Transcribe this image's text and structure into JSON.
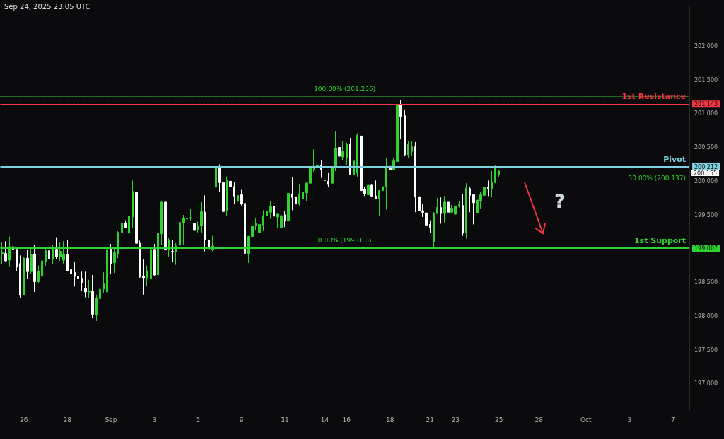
{
  "chart_data": {
    "type": "candlestick",
    "annotations": [
      "Sep 24, 2025 23:05 UTC",
      "?",
      "200.155"
    ],
    "categories": [
      null,
      null,
      null,
      null,
      null,
      null,
      "26",
      null,
      null,
      null,
      null,
      null,
      null,
      null,
      null,
      null,
      null,
      null,
      "28",
      null,
      null,
      null,
      null,
      null,
      null,
      null,
      null,
      null,
      null,
      null,
      "Sep",
      null,
      null,
      null,
      null,
      null,
      null,
      null,
      null,
      null,
      null,
      null,
      "3",
      null,
      null,
      null,
      null,
      null,
      null,
      null,
      null,
      null,
      null,
      null,
      "5",
      null,
      null,
      null,
      null,
      null,
      null,
      null,
      null,
      null,
      null,
      null,
      "9",
      null,
      null,
      null,
      null,
      null,
      null,
      null,
      null,
      null,
      null,
      null,
      "11",
      null,
      null,
      null,
      null,
      null,
      null,
      null,
      null,
      null,
      null,
      "14",
      null,
      null,
      null,
      null,
      null,
      "16",
      null,
      null,
      null,
      null,
      null,
      null,
      null,
      null,
      null,
      null,
      null,
      "18",
      null,
      null,
      null,
      null,
      null,
      null,
      null,
      null,
      null,
      null,
      "21",
      null,
      null,
      null,
      null,
      null,
      null,
      "23",
      null,
      null,
      null,
      null,
      null,
      null,
      null,
      null,
      null,
      null,
      null,
      "25",
      null,
      null,
      null,
      null,
      null,
      null,
      null,
      null,
      null,
      null,
      "28",
      null,
      null,
      null,
      null,
      null,
      null,
      null,
      null,
      null,
      null,
      null,
      null,
      "Oct",
      null,
      null,
      null,
      null,
      null,
      null,
      null,
      null,
      null,
      null,
      null,
      "3",
      null,
      null,
      null,
      null,
      null,
      null,
      null,
      null,
      null,
      null,
      null,
      "7",
      null,
      null,
      null,
      null
    ],
    "ohlc": [
      [
        198.92,
        199.09,
        198.77,
        198.94
      ],
      [
        198.93,
        199.11,
        198.81,
        198.82
      ],
      [
        198.83,
        199.18,
        198.74,
        199.03
      ],
      [
        199.03,
        199.29,
        198.93,
        198.99
      ],
      [
        198.99,
        199.02,
        198.67,
        198.73
      ],
      [
        198.78,
        198.9,
        198.27,
        198.31
      ],
      [
        198.32,
        198.88,
        198.31,
        198.86
      ],
      [
        198.86,
        198.98,
        198.55,
        198.66
      ],
      [
        198.66,
        199.01,
        198.63,
        198.91
      ],
      [
        198.92,
        199.05,
        198.36,
        198.51
      ],
      [
        198.51,
        198.75,
        198.49,
        198.67
      ],
      [
        198.59,
        198.88,
        198.44,
        198.82
      ],
      [
        198.81,
        199.02,
        198.75,
        198.97
      ],
      [
        198.97,
        198.99,
        198.66,
        198.85
      ],
      [
        198.85,
        199.06,
        198.77,
        199.0
      ],
      [
        198.99,
        199.17,
        198.85,
        198.88
      ],
      [
        198.88,
        199.09,
        198.82,
        198.96
      ],
      [
        198.83,
        199.11,
        198.78,
        198.92
      ],
      [
        198.92,
        199.13,
        198.67,
        198.67
      ],
      [
        198.69,
        198.97,
        198.54,
        198.63
      ],
      [
        198.65,
        198.81,
        198.44,
        198.59
      ],
      [
        198.59,
        198.81,
        198.5,
        198.56
      ],
      [
        198.56,
        198.66,
        198.38,
        198.5
      ],
      [
        198.41,
        198.66,
        198.28,
        198.36
      ],
      [
        198.36,
        198.54,
        198.27,
        198.37
      ],
      [
        198.37,
        198.61,
        197.97,
        198.03
      ],
      [
        198.02,
        198.32,
        197.93,
        198.27
      ],
      [
        198.26,
        198.51,
        197.99,
        198.4
      ],
      [
        198.4,
        198.65,
        198.34,
        198.48
      ],
      [
        198.36,
        199.06,
        198.23,
        198.99
      ],
      [
        198.99,
        199.07,
        198.62,
        198.78
      ],
      [
        198.79,
        199.0,
        198.64,
        198.94
      ],
      [
        198.93,
        199.26,
        198.86,
        199.24
      ],
      [
        199.24,
        199.56,
        199.23,
        199.38
      ],
      [
        199.38,
        199.42,
        199.3,
        199.31
      ],
      [
        199.23,
        199.5,
        199.14,
        199.48
      ],
      [
        199.47,
        200.01,
        199.31,
        199.85
      ],
      [
        199.84,
        200.26,
        198.8,
        199.08
      ],
      [
        199.08,
        199.12,
        198.57,
        198.58
      ],
      [
        198.59,
        198.84,
        198.32,
        198.57
      ],
      [
        198.57,
        198.75,
        198.45,
        198.67
      ],
      [
        198.56,
        198.99,
        198.47,
        198.99
      ],
      [
        198.99,
        199.07,
        198.6,
        198.61
      ],
      [
        198.61,
        199.26,
        198.47,
        199.23
      ],
      [
        199.22,
        199.71,
        199.05,
        199.69
      ],
      [
        199.69,
        199.72,
        198.89,
        198.98
      ],
      [
        198.98,
        199.16,
        198.88,
        199.13
      ],
      [
        198.96,
        199.13,
        198.8,
        198.95
      ],
      [
        198.95,
        199.08,
        198.76,
        199.04
      ],
      [
        199.05,
        199.49,
        198.95,
        199.39
      ],
      [
        199.38,
        199.5,
        199.05,
        199.45
      ],
      [
        199.44,
        199.83,
        199.32,
        199.45
      ],
      [
        199.45,
        199.59,
        199.42,
        199.46
      ],
      [
        199.38,
        199.56,
        199.17,
        199.27
      ],
      [
        199.28,
        199.4,
        199.24,
        199.34
      ],
      [
        199.34,
        199.69,
        199.24,
        199.55
      ],
      [
        199.54,
        199.79,
        198.96,
        199.13
      ],
      [
        199.13,
        199.33,
        198.67,
        199.0
      ],
      [
        198.99,
        199.19,
        198.96,
        199.04
      ],
      [
        199.91,
        200.34,
        199.62,
        200.22
      ],
      [
        200.21,
        200.25,
        199.84,
        199.98
      ],
      [
        199.98,
        200.01,
        199.36,
        199.55
      ],
      [
        199.56,
        200.07,
        199.49,
        200.01
      ],
      [
        200.0,
        200.15,
        199.84,
        199.92
      ],
      [
        199.92,
        199.99,
        199.66,
        199.78
      ],
      [
        199.7,
        199.83,
        199.56,
        199.79
      ],
      [
        199.8,
        199.87,
        199.64,
        199.66
      ],
      [
        199.67,
        199.78,
        198.88,
        198.93
      ],
      [
        198.93,
        199.19,
        198.79,
        199.18
      ],
      [
        199.18,
        199.42,
        198.88,
        199.34
      ],
      [
        199.34,
        199.45,
        199.27,
        199.38
      ],
      [
        199.24,
        199.41,
        199.15,
        199.36
      ],
      [
        199.35,
        199.57,
        199.26,
        199.49
      ],
      [
        199.49,
        199.66,
        199.4,
        199.55
      ],
      [
        199.54,
        199.71,
        199.44,
        199.62
      ],
      [
        199.63,
        199.8,
        199.44,
        199.48
      ],
      [
        199.47,
        199.52,
        199.3,
        199.51
      ],
      [
        199.31,
        199.52,
        199.22,
        199.49
      ],
      [
        199.5,
        199.56,
        199.32,
        199.41
      ],
      [
        199.41,
        199.86,
        199.36,
        199.82
      ],
      [
        199.81,
        200.06,
        199.57,
        199.76
      ],
      [
        199.77,
        199.92,
        199.37,
        199.66
      ],
      [
        199.66,
        199.96,
        199.64,
        199.8
      ],
      [
        199.74,
        199.94,
        199.64,
        199.84
      ],
      [
        199.83,
        199.99,
        199.71,
        199.97
      ],
      [
        199.97,
        200.24,
        199.66,
        200.19
      ],
      [
        200.17,
        200.47,
        200.13,
        200.22
      ],
      [
        200.21,
        200.36,
        200.07,
        200.24
      ],
      [
        200.24,
        200.31,
        200.05,
        200.17
      ],
      [
        200.02,
        200.33,
        199.9,
        200.01
      ],
      [
        200.0,
        200.12,
        199.91,
        199.96
      ],
      [
        199.97,
        200.44,
        199.93,
        200.2
      ],
      [
        200.2,
        200.74,
        200.15,
        200.49
      ],
      [
        200.5,
        200.52,
        200.21,
        200.37
      ],
      [
        200.36,
        200.59,
        200.31,
        200.44
      ],
      [
        200.35,
        200.57,
        200.24,
        200.55
      ],
      [
        200.55,
        200.64,
        200.09,
        200.1
      ],
      [
        200.09,
        200.41,
        200.06,
        200.3
      ],
      [
        200.12,
        200.71,
        200.06,
        200.68
      ],
      [
        200.67,
        200.67,
        199.85,
        199.86
      ],
      [
        199.88,
        199.92,
        199.78,
        199.81
      ],
      [
        199.8,
        200.01,
        199.7,
        199.95
      ],
      [
        199.95,
        199.96,
        199.77,
        199.78
      ],
      [
        199.78,
        200.01,
        199.73,
        199.74
      ],
      [
        199.74,
        199.87,
        199.48,
        199.86
      ],
      [
        199.86,
        199.99,
        199.68,
        199.92
      ],
      [
        199.92,
        200.34,
        199.58,
        200.21
      ],
      [
        200.22,
        200.34,
        200.05,
        200.17
      ],
      [
        200.17,
        200.34,
        200.17,
        200.3
      ],
      [
        200.29,
        201.25,
        200.29,
        201.13
      ],
      [
        201.13,
        201.2,
        200.62,
        200.96
      ],
      [
        200.97,
        201.05,
        200.38,
        200.39
      ],
      [
        200.39,
        200.6,
        200.34,
        200.55
      ],
      [
        200.44,
        200.6,
        200.38,
        200.51
      ],
      [
        200.51,
        200.58,
        199.54,
        199.77
      ],
      [
        199.77,
        199.92,
        199.36,
        199.56
      ],
      [
        199.56,
        199.66,
        199.47,
        199.54
      ],
      [
        199.53,
        199.65,
        199.21,
        199.35
      ],
      [
        199.36,
        199.42,
        199.23,
        199.31
      ],
      [
        199.1,
        199.54,
        199.02,
        199.52
      ],
      [
        199.52,
        199.75,
        199.52,
        199.61
      ],
      [
        199.61,
        199.76,
        199.37,
        199.52
      ],
      [
        199.52,
        199.78,
        199.39,
        199.69
      ],
      [
        199.69,
        199.78,
        199.52,
        199.54
      ],
      [
        199.54,
        199.65,
        199.52,
        199.6
      ],
      [
        199.51,
        199.71,
        199.43,
        199.63
      ],
      [
        199.64,
        199.71,
        199.61,
        199.65
      ],
      [
        199.64,
        199.81,
        199.19,
        199.23
      ],
      [
        199.24,
        199.97,
        199.15,
        199.9
      ],
      [
        199.89,
        199.91,
        199.54,
        199.79
      ],
      [
        199.8,
        199.8,
        199.36,
        199.68
      ],
      [
        199.53,
        199.84,
        199.45,
        199.72
      ],
      [
        199.71,
        199.84,
        199.59,
        199.8
      ],
      [
        199.79,
        199.96,
        199.56,
        199.91
      ],
      [
        199.91,
        200.01,
        199.78,
        199.89
      ],
      [
        199.89,
        200.15,
        199.77,
        199.99
      ],
      [
        199.98,
        200.24,
        199.97,
        200.22
      ],
      [
        200.1,
        200.17,
        200.06,
        200.15
      ],
      null,
      null,
      null,
      null,
      null,
      null,
      null,
      null,
      null,
      null,
      null,
      null,
      null,
      null,
      null,
      null,
      null,
      null,
      null,
      null,
      null,
      null,
      null,
      null,
      null,
      null,
      null,
      null,
      null,
      null,
      null,
      null,
      null,
      null,
      null,
      null,
      null,
      null,
      null,
      null,
      null,
      null,
      null,
      null,
      null,
      null,
      null,
      null,
      null,
      null,
      null,
      null
    ],
    "colors": [
      "#2fd22f",
      "#ffffff",
      "#2fd22f",
      "#ffffff",
      "#ffffff",
      "#ffffff",
      "#2fd22f",
      "#ffffff",
      "#2fd22f",
      "#ffffff",
      "#2fd22f",
      "#2fd22f",
      "#2fd22f",
      "#ffffff",
      "#2fd22f",
      "#ffffff",
      "#2fd22f",
      "#2fd22f",
      "#ffffff",
      "#ffffff",
      "#ffffff",
      "#ffffff",
      "#ffffff",
      "#ffffff",
      "#2fd22f",
      "#ffffff",
      "#2fd22f",
      "#2fd22f",
      "#2fd22f",
      "#2fd22f",
      "#ffffff",
      "#2fd22f",
      "#2fd22f",
      "#2fd22f",
      "#ffffff",
      "#2fd22f",
      "#2fd22f",
      "#ffffff",
      "#ffffff",
      "#ffffff",
      "#2fd22f",
      "#2fd22f",
      "#ffffff",
      "#2fd22f",
      "#2fd22f",
      "#ffffff",
      "#2fd22f",
      "#ffffff",
      "#2fd22f",
      "#2fd22f",
      "#2fd22f",
      "#2fd22f",
      "#2fd22f",
      "#ffffff",
      "#2fd22f",
      "#2fd22f",
      "#ffffff",
      "#ffffff",
      "#2fd22f",
      "#2fd22f",
      "#ffffff",
      "#ffffff",
      "#2fd22f",
      "#ffffff",
      "#ffffff",
      "#2fd22f",
      "#ffffff",
      "#ffffff",
      "#2fd22f",
      "#2fd22f",
      "#2fd22f",
      "#2fd22f",
      "#2fd22f",
      "#2fd22f",
      "#2fd22f",
      "#ffffff",
      "#2fd22f",
      "#2fd22f",
      "#ffffff",
      "#2fd22f",
      "#ffffff",
      "#ffffff",
      "#2fd22f",
      "#2fd22f",
      "#2fd22f",
      "#2fd22f",
      "#2fd22f",
      "#2fd22f",
      "#ffffff",
      "#ffffff",
      "#ffffff",
      "#2fd22f",
      "#2fd22f",
      "#ffffff",
      "#2fd22f",
      "#2fd22f",
      "#ffffff",
      "#2fd22f",
      "#2fd22f",
      "#ffffff",
      "#ffffff",
      "#2fd22f",
      "#ffffff",
      "#ffffff",
      "#2fd22f",
      "#2fd22f",
      "#2fd22f",
      "#ffffff",
      "#2fd22f",
      "#2fd22f",
      "#ffffff",
      "#ffffff",
      "#2fd22f",
      "#2fd22f",
      "#ffffff",
      "#ffffff",
      "#ffffff",
      "#ffffff",
      "#ffffff",
      "#2fd22f",
      "#2fd22f",
      "#ffffff",
      "#2fd22f",
      "#ffffff",
      "#2fd22f",
      "#2fd22f",
      "#2fd22f",
      "#ffffff",
      "#2fd22f",
      "#ffffff",
      "#ffffff",
      "#2fd22f",
      "#2fd22f",
      "#2fd22f",
      "#ffffff",
      "#2fd22f",
      "#2fd22f",
      "#2fd22f",
      null,
      null,
      null,
      null,
      null,
      null,
      null,
      null,
      null,
      null,
      null,
      null,
      null,
      null,
      null,
      null,
      null,
      null,
      null,
      null,
      null,
      null,
      null,
      null,
      null,
      null,
      null,
      null,
      null,
      null,
      null,
      null,
      null,
      null,
      null,
      null,
      null,
      null,
      null,
      null,
      null,
      null,
      null,
      null,
      null,
      null,
      null,
      null,
      null,
      null,
      null,
      null
    ],
    "ylim": [
      196.6,
      202.6
    ],
    "yticks": [
      {
        "value": 197,
        "label": "197.000"
      },
      {
        "value": 197.5,
        "label": "197.500"
      },
      {
        "value": 198,
        "label": "198.000"
      },
      {
        "value": 198.5,
        "label": "198.500"
      },
      {
        "value": 199.007,
        "label": "199.007"
      },
      {
        "value": 199.5,
        "label": "199.500"
      },
      {
        "value": 200,
        "label": "200.000"
      },
      {
        "value": 200.212,
        "label": "200.212"
      },
      {
        "value": 200.5,
        "label": "200.500"
      },
      {
        "value": 201,
        "label": "201.000"
      },
      {
        "value": 201.143,
        "label": "201.143"
      },
      {
        "value": 201.5,
        "label": "201.500"
      },
      {
        "value": 202,
        "label": "202.000"
      }
    ],
    "ref_lines": [
      {
        "axis": "y",
        "value": 201.143,
        "label": "1st Resistance",
        "color": "#f23645",
        "line_style": "solid"
      },
      {
        "axis": "y",
        "value": 200.212,
        "label": "Pivot",
        "color": "#7ecfe0",
        "line_style": "solid"
      },
      {
        "axis": "y",
        "value": 199.007,
        "label": "1st Support",
        "color": "#2fd22f",
        "line_style": "solid"
      },
      {
        "axis": "y",
        "value": 201.256,
        "label": "100.00% (201.256)",
        "color": "#2fd22f",
        "line_style": "dotted"
      },
      {
        "axis": "y",
        "value": 200.137,
        "label": "50.00% (200.137)",
        "color": "#2fd22f",
        "line_style": "dotted"
      },
      {
        "axis": "y",
        "value": 199.018,
        "label": "0.00% (199.018)",
        "color": "#2fd22f",
        "line_style": "dotted"
      }
    ],
    "grid": false
  }
}
